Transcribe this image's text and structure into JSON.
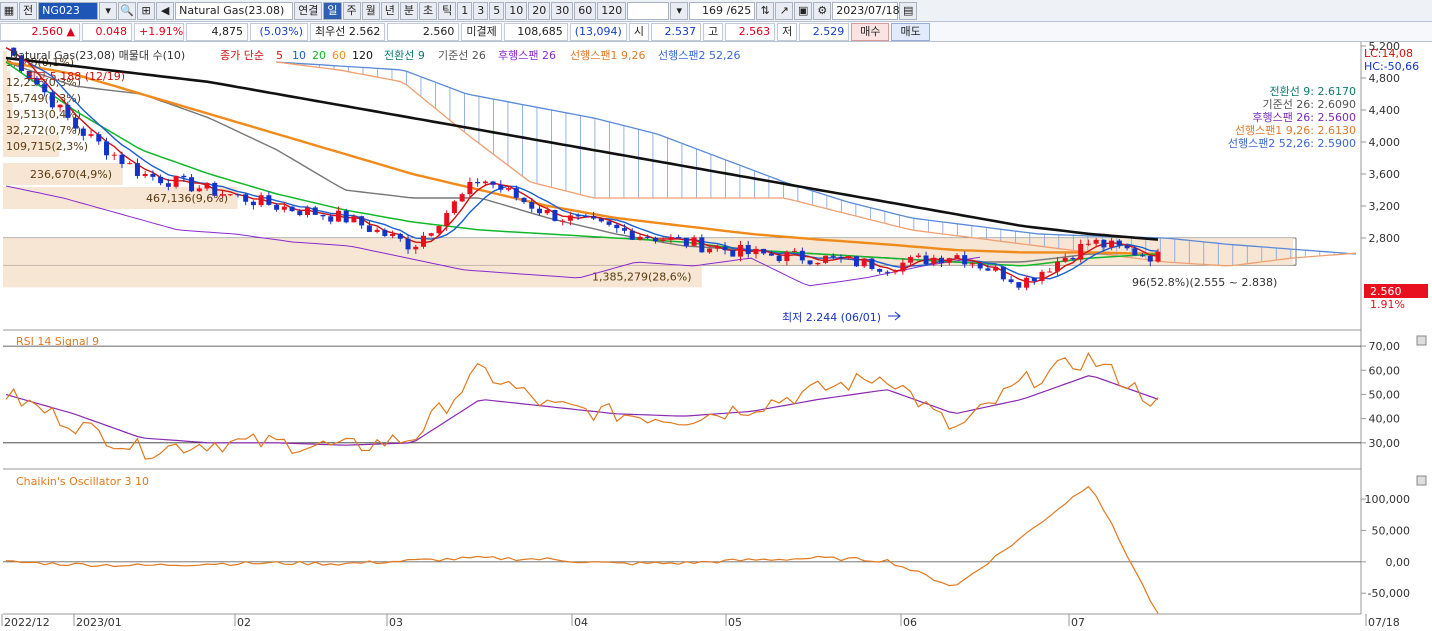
{
  "toolbar": {
    "tab_all": "전",
    "symbol_code": "NG023",
    "product_name": "Natural Gas(23.08)",
    "linked_label": "연결",
    "periods": [
      "일",
      "주",
      "월",
      "년",
      "분",
      "초",
      "틱"
    ],
    "intervals": [
      "1",
      "3",
      "5",
      "10",
      "20",
      "30",
      "60",
      "120"
    ],
    "count_display": "169 /625",
    "date": "2023/07/18"
  },
  "quote": {
    "price": "2.560",
    "change": "0.048",
    "change_pct": "+1.91%",
    "volume": "4,875",
    "volume_pct": "5.03%",
    "best_bid_label": "최우선",
    "best_bid": "2.562",
    "best_ask": "2.560",
    "open_interest_label": "미결제",
    "open_interest": "108,685",
    "oi_change": "13,094",
    "open_label": "시",
    "open": "2.537",
    "high_label": "고",
    "high": "2.563",
    "low_label": "저",
    "low": "2.529",
    "buy_label": "매수",
    "sell_label": "매도"
  },
  "legend": {
    "title": "Natural Gas(23,08) 매물대 수(10)",
    "ma_label": "종가 단순",
    "ma_periods": [
      "5",
      "10",
      "20",
      "60",
      "120"
    ],
    "ichimoku": [
      "전환선 9",
      "기준선 26",
      "후행스팬 26",
      "선행스팬1 9,26",
      "선행스팬2 52,26"
    ],
    "lc": "LC:14,08",
    "hc": "HC:-50,66"
  },
  "ichimoku_values": [
    {
      "text": "전환선 9: 2.6170",
      "color": "#0e7a6e"
    },
    {
      "text": "기준선 26: 2.6090",
      "color": "#555555"
    },
    {
      "text": "후행스팬 26: 2.5600",
      "color": "#7a2ab8"
    },
    {
      "text": "선행스팬1 9,26: 2.6130",
      "color": "#e07a2a"
    },
    {
      "text": "선행스팬2 52,26: 2.5900",
      "color": "#3a6ad0"
    }
  ],
  "annotations": {
    "high": "최고 5.188 (12/19)",
    "low": "최저 2.244 (06/01)",
    "range": "96(52.8%)(2.555 ~ 2.838)"
  },
  "current_price_tag": "2.560",
  "current_pct_tag": "1.91%",
  "x_axis_labels": [
    "2022/12",
    "2023/01",
    "02",
    "03",
    "04",
    "05",
    "06",
    "07",
    "07/18"
  ],
  "colors": {
    "up": "#e8101e",
    "down": "#1434c8",
    "ma5": "#d01010",
    "ma10": "#1a5fd0",
    "ma20": "#12b82a",
    "ma60": "#f08a1a",
    "ma120": "#111111",
    "kijun": "#777777",
    "chikou": "#8a2ad0",
    "span1": "#f0a070",
    "span2": "#5a8ad8",
    "rsi": "#e07a20",
    "signal": "#8a2ab0",
    "chaikin": "#e07a20"
  },
  "chart_data": [
    {
      "type": "line",
      "panel": "price",
      "ylim": [
        1.7,
        5.2
      ],
      "yticks": [
        "5,200",
        "4,800",
        "4,400",
        "4,000",
        "3,600",
        "3,200",
        "2,800"
      ],
      "volume_profile": [
        {
          "label": "5,188(0,1%)",
          "pct": 0.1
        },
        {
          "label": "12,256(0,3%)",
          "pct": 0.3
        },
        {
          "label": "15,749(0,3%)",
          "pct": 0.3
        },
        {
          "label": "19,513(0,4%)",
          "pct": 0.4
        },
        {
          "label": "32,272(0,7%)",
          "pct": 0.7
        },
        {
          "label": "109,715(2,3%)",
          "pct": 2.3
        },
        {
          "label": "236,670(4,9%)",
          "pct": 4.9
        },
        {
          "label": "467,136(9,6%)",
          "pct": 9.6
        },
        {
          "label": "",
          "pct": 52.8
        },
        {
          "label": "1,385,279(28,6%)",
          "pct": 28.6
        }
      ],
      "series": [
        {
          "name": "MA120",
          "values": [
            5.05,
            4.95,
            4.85,
            4.75,
            4.6,
            4.45,
            4.3,
            4.15,
            4.0,
            3.85,
            3.7,
            3.55,
            3.4,
            3.25,
            3.1,
            2.95,
            2.85,
            2.78
          ]
        },
        {
          "name": "MA60",
          "values": [
            5.0,
            4.85,
            4.6,
            4.35,
            4.1,
            3.85,
            3.6,
            3.4,
            3.2,
            3.05,
            2.95,
            2.85,
            2.78,
            2.72,
            2.65,
            2.62,
            2.62,
            2.6
          ]
        },
        {
          "name": "MA20",
          "values": [
            5.0,
            4.4,
            3.9,
            3.6,
            3.35,
            3.15,
            3.0,
            2.9,
            2.85,
            2.8,
            2.75,
            2.65,
            2.6,
            2.55,
            2.5,
            2.45,
            2.55,
            2.6
          ]
        },
        {
          "name": "Close",
          "values": [
            5.18,
            4.2,
            3.6,
            3.4,
            3.2,
            3.05,
            2.7,
            3.55,
            3.1,
            2.9,
            2.75,
            2.6,
            2.55,
            2.45,
            2.6,
            2.25,
            2.75,
            2.56
          ]
        }
      ]
    },
    {
      "type": "line",
      "panel": "RSI",
      "title": "RSI 14  Signal 9",
      "ylim": [
        20,
        75
      ],
      "yticks": [
        "70,00",
        "60,00",
        "50,00",
        "40,00",
        "30,00"
      ],
      "series": [
        {
          "name": "RSI",
          "values": [
            50,
            38,
            27,
            30,
            30,
            28,
            32,
            60,
            45,
            42,
            40,
            45,
            52,
            58,
            35,
            55,
            65,
            46
          ]
        },
        {
          "name": "Signal",
          "values": [
            50,
            42,
            32,
            30,
            30,
            29,
            30,
            48,
            45,
            42,
            41,
            43,
            48,
            52,
            42,
            48,
            58,
            48
          ]
        }
      ]
    },
    {
      "type": "line",
      "panel": "Chaikin",
      "title": "Chaikin's Oscillator 3 10",
      "ylim": [
        -80000,
        140000
      ],
      "yticks": [
        "100,000",
        "50,000",
        "0,00",
        "-50,000"
      ],
      "series": [
        {
          "name": "Chaikin",
          "values": [
            0,
            -4000,
            -6000,
            -3000,
            -2000,
            -3000,
            2000,
            6000,
            4000,
            -3000,
            -2000,
            3000,
            6000,
            2000,
            -40000,
            40000,
            125000,
            -85000
          ]
        }
      ]
    }
  ]
}
